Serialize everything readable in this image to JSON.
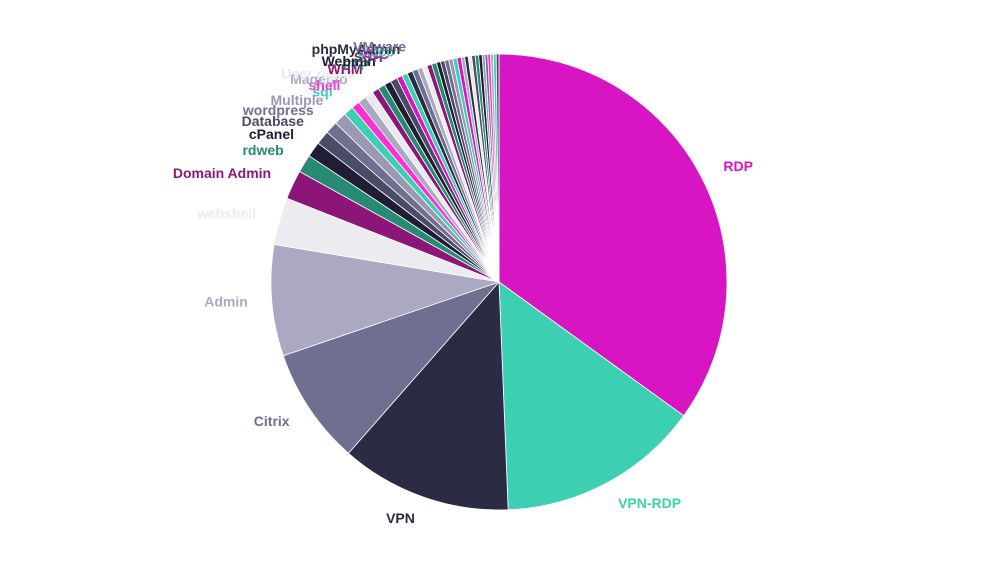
{
  "chart_data": {
    "type": "pie",
    "start_angle_deg": 0,
    "direction": "clockwise",
    "slices": [
      {
        "label": "RDP",
        "value": 35.5,
        "color": "#d815c3"
      },
      {
        "label": "VPN-RDP",
        "value": 14.6,
        "color": "#3dcfb1"
      },
      {
        "label": "VPN",
        "value": 12.3,
        "color": "#2c2b44"
      },
      {
        "label": "Citrix",
        "value": 8.4,
        "color": "#6f6f92"
      },
      {
        "label": "Admin",
        "value": 8.0,
        "color": "#aaa9c1"
      },
      {
        "label": "webshell",
        "value": 3.4,
        "color": "#ececf0"
      },
      {
        "label": "Domain Admin",
        "value": 2.1,
        "color": "#8b1678"
      },
      {
        "label": "rdweb",
        "value": 1.3,
        "color": "#278a72"
      },
      {
        "label": "cPanel",
        "value": 1.1,
        "color": "#1f1e34"
      },
      {
        "label": "Database",
        "value": 1.0,
        "color": "#4b4b68"
      },
      {
        "label": "wordpress",
        "value": 0.9,
        "color": "#6f6f92"
      },
      {
        "label": "Multiple",
        "value": 0.9,
        "color": "#9a99b4"
      },
      {
        "label": "sql",
        "value": 0.7,
        "color": "#3dcfb1"
      },
      {
        "label": "shell",
        "value": 0.6,
        "color": "#ff2fd6"
      },
      {
        "label": "Magento",
        "value": 0.6,
        "color": "#aaa9c1"
      },
      {
        "label": "User rights",
        "value": 0.6,
        "color": "#e8e8ee"
      },
      {
        "label": "WHM",
        "value": 0.5,
        "color": "#8b1678"
      },
      {
        "label": "FTP",
        "value": 0.5,
        "color": "#278a72"
      },
      {
        "label": "Webmin",
        "value": 0.5,
        "color": "#1f1e34"
      },
      {
        "label": "SSH",
        "value": 0.5,
        "color": "#4b4b68"
      },
      {
        "label": "VNC",
        "value": 0.4,
        "color": "#d815c3"
      },
      {
        "label": "Cisco",
        "value": 0.4,
        "color": "#3dcfb1"
      },
      {
        "label": "phpMyAdmin",
        "value": 0.4,
        "color": "#2c2b44"
      },
      {
        "label": "VMware",
        "value": 0.4,
        "color": "#6f6f92"
      },
      {
        "label": "",
        "value": 0.35,
        "color": "#aaa9c1"
      },
      {
        "label": "",
        "value": 0.35,
        "color": "#ececf0"
      },
      {
        "label": "",
        "value": 0.35,
        "color": "#8b1678"
      },
      {
        "label": "",
        "value": 0.35,
        "color": "#278a72"
      },
      {
        "label": "",
        "value": 0.3,
        "color": "#1f1e34"
      },
      {
        "label": "",
        "value": 0.3,
        "color": "#4b4b68"
      },
      {
        "label": "",
        "value": 0.3,
        "color": "#6f6f92"
      },
      {
        "label": "",
        "value": 0.3,
        "color": "#9a99b4"
      },
      {
        "label": "",
        "value": 0.3,
        "color": "#3dcfb1"
      },
      {
        "label": "",
        "value": 0.3,
        "color": "#d815c3"
      },
      {
        "label": "",
        "value": 0.25,
        "color": "#aaa9c1"
      },
      {
        "label": "",
        "value": 0.25,
        "color": "#2c2b44"
      },
      {
        "label": "",
        "value": 0.25,
        "color": "#e8e8ee"
      },
      {
        "label": "",
        "value": 0.25,
        "color": "#4b4b68"
      },
      {
        "label": "",
        "value": 0.25,
        "color": "#278a72"
      },
      {
        "label": "",
        "value": 0.25,
        "color": "#1f1e34"
      },
      {
        "label": "",
        "value": 0.2,
        "color": "#9a99b4"
      },
      {
        "label": "",
        "value": 0.2,
        "color": "#6f6f92"
      },
      {
        "label": "",
        "value": 0.2,
        "color": "#ff2fd6"
      },
      {
        "label": "",
        "value": 0.2,
        "color": "#aaa9c1"
      },
      {
        "label": "",
        "value": 0.2,
        "color": "#3dcfb1"
      },
      {
        "label": "",
        "value": 0.2,
        "color": "#4b4b68"
      }
    ]
  }
}
